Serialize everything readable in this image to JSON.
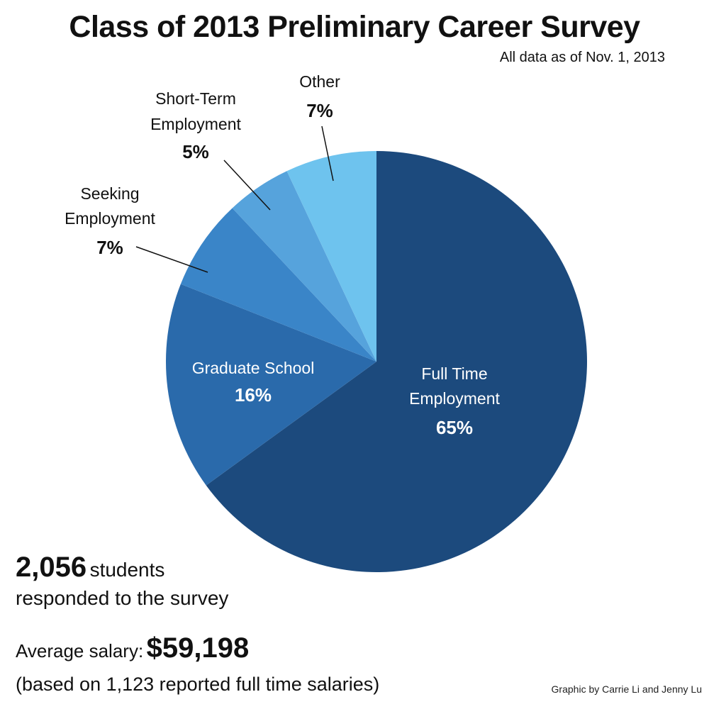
{
  "title": "Class of 2013 Preliminary Career Survey",
  "subtitle": "All data as of Nov. 1, 2013",
  "chart_data": {
    "type": "pie",
    "slices": [
      {
        "label": "Full Time Employment",
        "value": 65,
        "value_label": "65%",
        "color": "#1c4a7d"
      },
      {
        "label": "Graduate School",
        "value": 16,
        "value_label": "16%",
        "color": "#2a6aab"
      },
      {
        "label": "Seeking Employment",
        "value": 7,
        "value_label": "7%",
        "color": "#3a85c8"
      },
      {
        "label": "Short-Term Employment",
        "value": 5,
        "value_label": "5%",
        "color": "#56a3dc"
      },
      {
        "label": "Other",
        "value": 7,
        "value_label": "7%",
        "color": "#6ec3ee"
      }
    ]
  },
  "stats": {
    "respondents_value": "2,056",
    "respondents_unit": "students",
    "respondents_text": "responded to the survey",
    "salary_label": "Average salary:",
    "salary_value": "$59,198",
    "salary_note": "(based on 1,123 reported full time salaries)"
  },
  "credit": "Graphic by Carrie Li and Jenny Lu"
}
